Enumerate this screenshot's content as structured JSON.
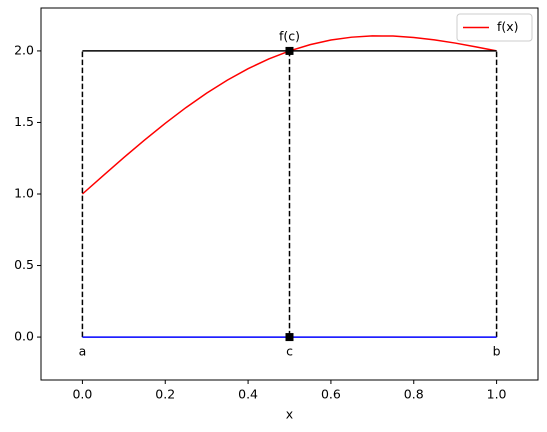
{
  "chart_data": {
    "type": "line",
    "xlabel": "x",
    "series": [
      {
        "name": "f(x)",
        "color": "#ff0000",
        "x": [
          0,
          0.05,
          0.1,
          0.15,
          0.2,
          0.25,
          0.3,
          0.35,
          0.4,
          0.45,
          0.5,
          0.55,
          0.6,
          0.65,
          0.7,
          0.75,
          0.8,
          0.85,
          0.9,
          0.95,
          1
        ],
        "values": [
          1,
          1.128,
          1.255,
          1.377,
          1.494,
          1.604,
          1.705,
          1.796,
          1.876,
          1.944,
          2.0,
          2.044,
          2.076,
          2.096,
          2.105,
          2.104,
          2.094,
          2.077,
          2.055,
          2.028,
          2.0
        ]
      }
    ],
    "rectangle": {
      "x0": 0,
      "x1": 1,
      "height": 2,
      "color": "#000000"
    },
    "baseline": {
      "y": 0,
      "color": "#0000ff"
    },
    "points": {
      "x": [
        0.5,
        0.5
      ],
      "y": [
        2,
        0
      ],
      "color": "#000000"
    },
    "annotations": [
      {
        "text": "a",
        "x": 0,
        "y": 0
      },
      {
        "text": "c",
        "x": 0.5,
        "y": 0
      },
      {
        "text": "b",
        "x": 1,
        "y": 0
      },
      {
        "text": "f(c)",
        "x": 0.5,
        "y": 2
      }
    ],
    "xlim": [
      -0.1,
      1.1
    ],
    "ylim": [
      -0.3,
      2.3
    ],
    "xticks": [
      {
        "value": 0,
        "label": "0.0"
      },
      0.2,
      0.4,
      0.6,
      0.8,
      {
        "value": 1,
        "label": "1.0"
      }
    ],
    "yticks": [
      {
        "value": 0,
        "label": "0.0"
      },
      0.5,
      {
        "value": 1,
        "label": "1.0"
      },
      1.5,
      {
        "value": 2,
        "label": "2.0"
      }
    ],
    "legend": "upper right"
  }
}
